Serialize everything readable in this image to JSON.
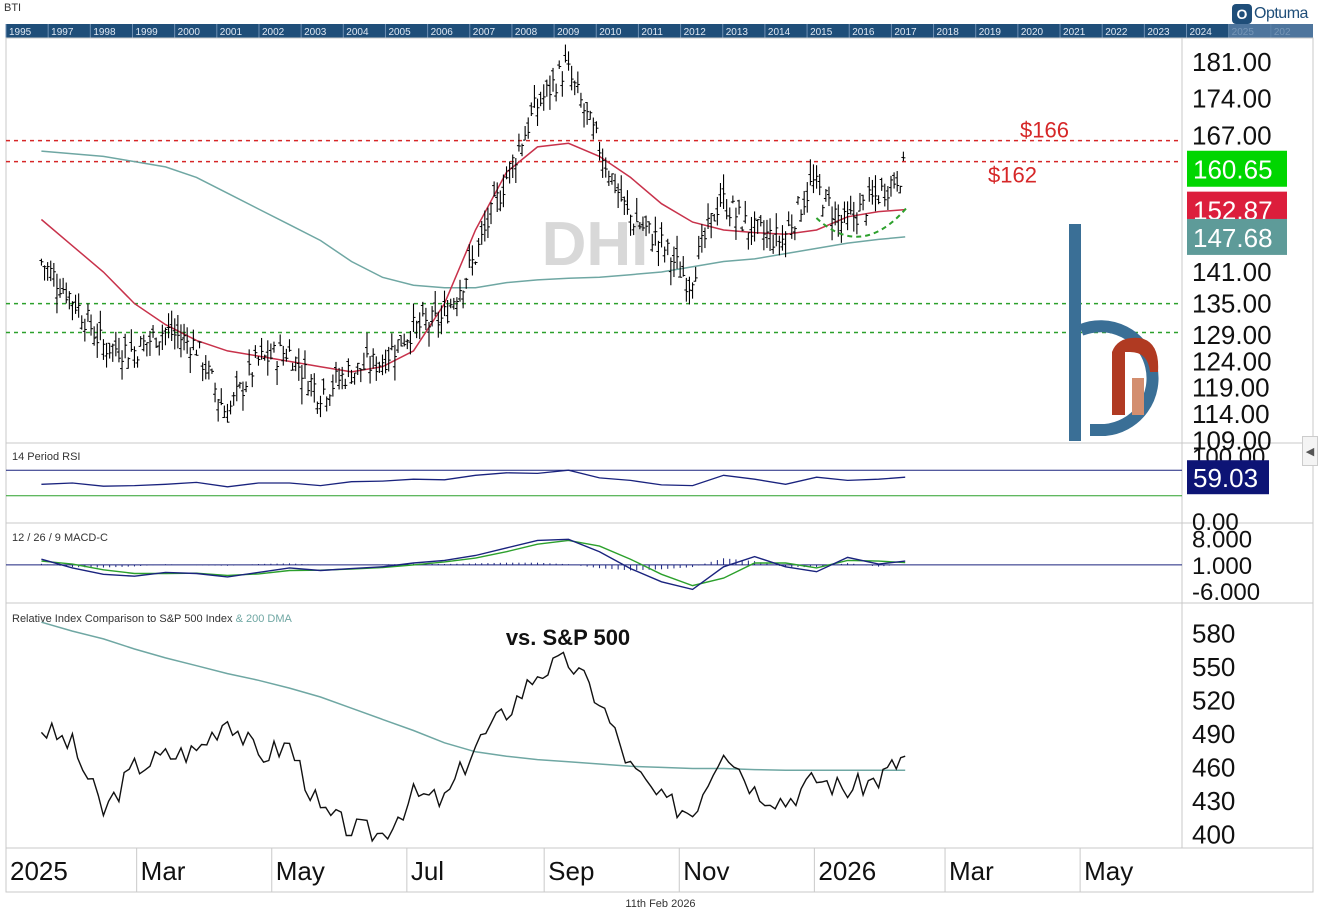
{
  "header": {
    "symbol": "BTI",
    "brand": "Optuma",
    "brand_mark": "O"
  },
  "footer": {
    "date": "11th Feb 2026"
  },
  "navigator": {
    "years": [
      "1995",
      "1997",
      "1998",
      "1999",
      "2000",
      "2001",
      "2002",
      "2003",
      "2004",
      "2005",
      "2006",
      "2007",
      "2008",
      "2009",
      "2010",
      "2011",
      "2012",
      "2013",
      "2014",
      "2015",
      "2016",
      "2017",
      "2018",
      "2019",
      "2020",
      "2021",
      "2022",
      "2023",
      "2024",
      "2025",
      "202"
    ]
  },
  "colors": {
    "price": "#000000",
    "ma50": "#c8324b",
    "ma200": "#6fa7a3",
    "resistance": "#d62728",
    "support": "#2ca02c",
    "rsi": "#1a237e",
    "macd": "#1a237e",
    "macd_signal": "#2ca02c",
    "label_green": "#00d600",
    "label_red": "#dc1e3c",
    "label_teal": "#5e9b99",
    "label_navy": "#0d1475",
    "watermark": "#d8d8d8",
    "logo_blue": "#3a6f96",
    "logo_red": "#b03a22"
  },
  "chart_data": [
    {
      "panel": "price",
      "type": "ohlc",
      "watermark": "DHI",
      "ylim": [
        110,
        184
      ],
      "ticks": [
        "181.00",
        "174.00",
        "167.00",
        "160.00",
        "154.00",
        "147.00",
        "141.00",
        "135.00",
        "129.00",
        "124.00",
        "119.00",
        "114.00",
        "109.00"
      ],
      "x_time": [
        "2025-01-17",
        "2025-01-31",
        "2025-02-14",
        "2025-02-28",
        "2025-03-14",
        "2025-03-28",
        "2025-04-11",
        "2025-04-25",
        "2025-05-09",
        "2025-05-23",
        "2025-06-06",
        "2025-06-20",
        "2025-07-04",
        "2025-07-18",
        "2025-08-01",
        "2025-08-15",
        "2025-08-29",
        "2025-09-12",
        "2025-09-26",
        "2025-10-10",
        "2025-10-24",
        "2025-11-07",
        "2025-11-21",
        "2025-12-05",
        "2025-12-19",
        "2026-01-02",
        "2026-01-16",
        "2026-01-30",
        "2026-02-11"
      ],
      "close": [
        143,
        136,
        127,
        126,
        130,
        127,
        114,
        124,
        126,
        118,
        122,
        124,
        130,
        132,
        143,
        158,
        172,
        180,
        166,
        152,
        147,
        139,
        155,
        149,
        147,
        158,
        150,
        155,
        160.65
      ],
      "ma50": [
        151,
        146,
        141,
        135,
        131,
        128,
        126,
        125,
        124,
        123,
        122,
        123,
        126,
        135,
        149,
        160,
        164.8,
        165.5,
        163,
        159,
        154,
        150.5,
        149,
        148.5,
        148.2,
        149,
        151.5,
        152.5,
        152.87
      ],
      "ma200": [
        164,
        163.5,
        163,
        162,
        161,
        159,
        156,
        153,
        150,
        147,
        143,
        140,
        138.5,
        138,
        138,
        139,
        139.5,
        139.8,
        140,
        140.5,
        141,
        142,
        143,
        143.5,
        144.5,
        145.5,
        146.5,
        147.2,
        147.68
      ],
      "resistance": [
        {
          "label": "$166",
          "value": 166
        },
        {
          "label": "$162",
          "value": 162
        }
      ],
      "support": [
        135,
        129.5
      ],
      "last_labels": {
        "close": "160.65",
        "ma50": "152.87",
        "ma200": "147.68"
      }
    },
    {
      "panel": "rsi",
      "type": "line",
      "title": "14 Period RSI",
      "ylim": [
        0,
        100
      ],
      "ticks": [
        "100.00",
        "0.00"
      ],
      "bands": [
        70,
        30
      ],
      "values": [
        48,
        50,
        45,
        46,
        48,
        51,
        44,
        50,
        50,
        46,
        52,
        53,
        56,
        55,
        62,
        66,
        65,
        70,
        58,
        54,
        47,
        46,
        62,
        56,
        48,
        59,
        54,
        56,
        59.03
      ],
      "last_label": "59.03"
    },
    {
      "panel": "macd",
      "type": "line",
      "title": "12 / 26 / 9 MACD-C",
      "ylim": [
        -7,
        10
      ],
      "ticks": [
        "8.000",
        "1.000",
        "-6.000"
      ],
      "zero": 1,
      "macd": [
        2.5,
        0.2,
        -1.5,
        -2.0,
        -1.0,
        -1.3,
        -2.2,
        -1.0,
        0.2,
        -0.5,
        0.0,
        0.5,
        1.5,
        2.2,
        3.5,
        5.5,
        7.5,
        7.8,
        4.5,
        0.0,
        -3.5,
        -5.5,
        0.5,
        3.2,
        0.5,
        -0.8,
        3.0,
        1.2,
        2.0
      ],
      "signal": [
        2.0,
        1.2,
        -0.3,
        -1.3,
        -1.3,
        -1.2,
        -1.8,
        -1.4,
        -0.5,
        -0.4,
        -0.1,
        0.3,
        1.0,
        1.8,
        2.8,
        4.5,
        6.5,
        7.5,
        6.0,
        2.5,
        -1.5,
        -4.5,
        -2.5,
        1.5,
        1.5,
        0.2,
        2.2,
        2.0,
        1.6
      ]
    },
    {
      "panel": "relative",
      "type": "line",
      "title": "Relative Index Comparison to S&P 500 Index",
      "ma_label": "& 200 DMA",
      "annotation": "vs. S&P 500",
      "ylim": [
        395,
        600
      ],
      "ticks": [
        "580",
        "550",
        "520",
        "490",
        "460",
        "430",
        "400"
      ],
      "values": [
        495,
        480,
        420,
        460,
        470,
        475,
        505,
        470,
        480,
        420,
        405,
        400,
        435,
        430,
        480,
        510,
        545,
        555,
        520,
        460,
        430,
        420,
        480,
        440,
        430,
        450,
        440,
        450,
        470
      ],
      "ma200": [
        590,
        582,
        575,
        566,
        558,
        551,
        544,
        538,
        531,
        523,
        513,
        503,
        493,
        482,
        474,
        470,
        467,
        465,
        463,
        461,
        460,
        459,
        459,
        458,
        457.5,
        457.5,
        457.5,
        457.5,
        457.5
      ]
    }
  ],
  "x_axis": {
    "labels": [
      {
        "text": "2025",
        "date": "2025-01-01"
      },
      {
        "text": "Mar",
        "date": "2025-03-01"
      },
      {
        "text": "May",
        "date": "2025-05-01"
      },
      {
        "text": "Jul",
        "date": "2025-07-01"
      },
      {
        "text": "Sep",
        "date": "2025-09-01"
      },
      {
        "text": "Nov",
        "date": "2025-11-01"
      },
      {
        "text": "2026",
        "date": "2026-01-01"
      },
      {
        "text": "Mar",
        "date": "2026-03-01"
      },
      {
        "text": "May",
        "date": "2026-05-01"
      }
    ],
    "range": [
      "2025-01-01",
      "2026-06-16"
    ]
  }
}
